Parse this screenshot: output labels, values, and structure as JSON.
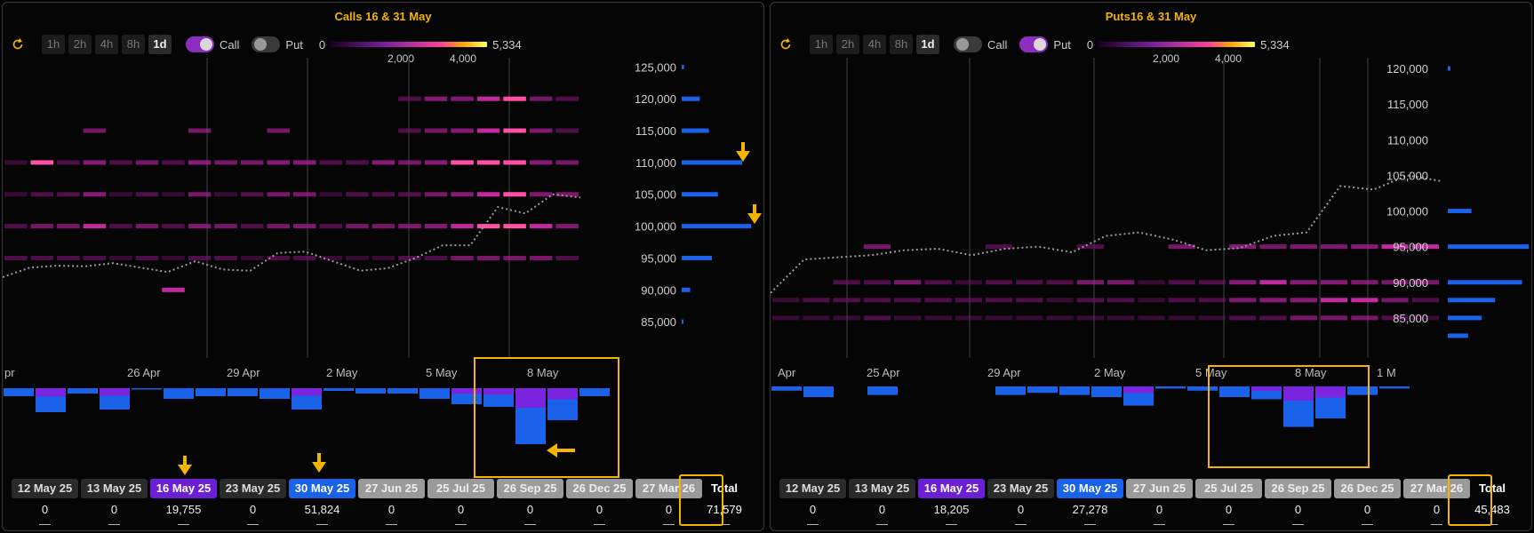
{
  "panels": [
    {
      "id": "calls",
      "title": "Calls 16 & 31 May",
      "timeframes": [
        "1h",
        "2h",
        "4h",
        "8h",
        "1d"
      ],
      "active_timeframe": "1d",
      "call_label": "Call",
      "put_label": "Put",
      "call_on": true,
      "put_on": false,
      "legend": {
        "min": "0",
        "max": "5,334",
        "ticks": [
          "2,000",
          "4,000"
        ]
      },
      "expiries": [
        {
          "label": "12 May 25",
          "value": "0",
          "style": "dark"
        },
        {
          "label": "13 May 25",
          "value": "0",
          "style": "dark"
        },
        {
          "label": "16 May 25",
          "value": "19,755",
          "style": "purple"
        },
        {
          "label": "23 May 25",
          "value": "0",
          "style": "dark"
        },
        {
          "label": "30 May 25",
          "value": "51,824",
          "style": "blue"
        },
        {
          "label": "27 Jun 25",
          "value": "0",
          "style": "grey"
        },
        {
          "label": "25 Jul 25",
          "value": "0",
          "style": "grey"
        },
        {
          "label": "26 Sep 25",
          "value": "0",
          "style": "grey"
        },
        {
          "label": "26 Dec 25",
          "value": "0",
          "style": "grey"
        },
        {
          "label": "27 Mar 26",
          "value": "0",
          "style": "grey"
        }
      ],
      "dash": "—",
      "total_label": "Total",
      "total_value": "71,579"
    },
    {
      "id": "puts",
      "title": "Puts16 & 31 May",
      "timeframes": [
        "1h",
        "2h",
        "4h",
        "8h",
        "1d"
      ],
      "active_timeframe": "1d",
      "call_label": "Call",
      "put_label": "Put",
      "call_on": false,
      "put_on": true,
      "legend": {
        "min": "0",
        "max": "5,334",
        "ticks": [
          "2,000",
          "4,000"
        ]
      },
      "expiries": [
        {
          "label": "12 May 25",
          "value": "0",
          "style": "dark"
        },
        {
          "label": "13 May 25",
          "value": "0",
          "style": "dark"
        },
        {
          "label": "16 May 25",
          "value": "18,205",
          "style": "purple"
        },
        {
          "label": "23 May 25",
          "value": "0",
          "style": "dark"
        },
        {
          "label": "30 May 25",
          "value": "27,278",
          "style": "blue"
        },
        {
          "label": "27 Jun 25",
          "value": "0",
          "style": "grey"
        },
        {
          "label": "25 Jul 25",
          "value": "0",
          "style": "grey"
        },
        {
          "label": "26 Sep 25",
          "value": "0",
          "style": "grey"
        },
        {
          "label": "26 Dec 25",
          "value": "0",
          "style": "grey"
        },
        {
          "label": "27 Mar 26",
          "value": "0",
          "style": "grey"
        }
      ],
      "dash": "—",
      "total_label": "Total",
      "total_value": "45,483"
    }
  ],
  "chart_data": [
    {
      "type": "heatmap",
      "title": "Calls 16 & 31 May",
      "x_ticks": [
        "pr",
        "26 Apr",
        "29 Apr",
        "2 May",
        "5 May",
        "8 May"
      ],
      "y_ticks": [
        125000,
        120000,
        115000,
        110000,
        105000,
        100000,
        95000,
        90000,
        85000
      ],
      "ylim": [
        80000,
        127000
      ],
      "colorbar": {
        "min": 0,
        "max": 5334
      },
      "price_line": [
        92000,
        93500,
        93800,
        93700,
        94200,
        93500,
        92800,
        94500,
        93200,
        93000,
        95800,
        96000,
        94500,
        93000,
        93400,
        95000,
        97000,
        97000,
        103000,
        102000,
        105000,
        104500
      ],
      "heat_rows": [
        {
          "strike": 120000,
          "cells": [
            0,
            0,
            0,
            0,
            0,
            0,
            0,
            0,
            0,
            0,
            0,
            0,
            0,
            0,
            0,
            0.2,
            0.5,
            0.4,
            0.6,
            0.9,
            0.3,
            0.2
          ]
        },
        {
          "strike": 115000,
          "cells": [
            0,
            0,
            0,
            0.3,
            0,
            0,
            0,
            0.3,
            0,
            0,
            0.3,
            0,
            0,
            0,
            0,
            0.2,
            0.3,
            0.5,
            0.7,
            0.9,
            0.4,
            0.2
          ]
        },
        {
          "strike": 110000,
          "cells": [
            0.1,
            0.8,
            0.2,
            0.5,
            0.2,
            0.3,
            0.2,
            0.5,
            0.3,
            0.3,
            0.5,
            0.5,
            0.2,
            0.2,
            0.5,
            0.3,
            0.5,
            0.8,
            0.9,
            0.9,
            0.5,
            0.3
          ]
        },
        {
          "strike": 105000,
          "cells": [
            0.1,
            0.2,
            0.2,
            0.5,
            0.1,
            0.2,
            0.1,
            0.3,
            0.1,
            0.2,
            0.3,
            0.3,
            0.1,
            0.2,
            0.2,
            0.2,
            0.3,
            0.5,
            0.6,
            0.95,
            0.4,
            0.3
          ]
        },
        {
          "strike": 100000,
          "cells": [
            0.2,
            0.3,
            0.3,
            0.6,
            0.2,
            0.3,
            0.2,
            0.4,
            0.3,
            0.2,
            0.3,
            0.4,
            0.2,
            0.3,
            0.3,
            0.4,
            0.5,
            0.6,
            0.8,
            0.9,
            0.6,
            0.4
          ]
        },
        {
          "strike": 95000,
          "cells": [
            0.2,
            0.2,
            0.2,
            0.2,
            0.1,
            0.2,
            0.1,
            0.2,
            0.2,
            0.1,
            0.2,
            0.2,
            0.1,
            0.1,
            0.1,
            0.2,
            0.2,
            0.3,
            0.3,
            0.3,
            0.3,
            0.2
          ]
        },
        {
          "strike": 90000,
          "cells": [
            0,
            0,
            0,
            0,
            0,
            0,
            0.6,
            0,
            0,
            0,
            0,
            0,
            0,
            0,
            0,
            0,
            0,
            0,
            0,
            0,
            0,
            0
          ]
        }
      ],
      "side_bars": [
        {
          "strike": 125000,
          "value": 0.04
        },
        {
          "strike": 120000,
          "value": 0.3
        },
        {
          "strike": 115000,
          "value": 0.45
        },
        {
          "strike": 110000,
          "value": 1.0
        },
        {
          "strike": 105000,
          "value": 0.6
        },
        {
          "strike": 100000,
          "value": 1.15
        },
        {
          "strike": 95000,
          "value": 0.5
        },
        {
          "strike": 90000,
          "value": 0.14
        },
        {
          "strike": 85000,
          "value": 0.02
        }
      ],
      "bottom_bars": [
        -0.3,
        -0.9,
        -0.2,
        -0.8,
        -0.05,
        -0.4,
        -0.3,
        -0.3,
        -0.4,
        -0.8,
        -0.1,
        -0.2,
        -0.2,
        -0.4,
        -0.6,
        -0.7,
        -2.1,
        -1.2,
        -0.3,
        0
      ]
    },
    {
      "type": "heatmap",
      "title": "Puts16 & 31 May",
      "x_ticks": [
        "Apr",
        "25 Apr",
        "29 Apr",
        "2 May",
        "5 May",
        "8 May",
        "1 M"
      ],
      "y_ticks": [
        120000,
        115000,
        110000,
        105000,
        100000,
        95000,
        90000,
        85000
      ],
      "ylim": [
        80000,
        122000
      ],
      "colorbar": {
        "min": 0,
        "max": 5334
      },
      "price_line": [
        88500,
        93200,
        93500,
        93800,
        94500,
        94700,
        93800,
        94700,
        95000,
        94200,
        96500,
        97000,
        96000,
        94500,
        94800,
        96500,
        97000,
        103500,
        103000,
        105000,
        104200
      ],
      "heat_rows": [
        {
          "strike": 95000,
          "cells": [
            0,
            0,
            0,
            0.3,
            0,
            0,
            0,
            0.2,
            0,
            0,
            0.2,
            0,
            0,
            0.3,
            0,
            0.5,
            0.3,
            0.4,
            0.4,
            0.5,
            0.6,
            0.6
          ]
        },
        {
          "strike": 90000,
          "cells": [
            0,
            0,
            0.2,
            0.2,
            0.3,
            0.2,
            0.1,
            0.2,
            0.2,
            0.2,
            0.3,
            0.3,
            0.1,
            0.2,
            0.2,
            0.5,
            0.6,
            0.5,
            0.5,
            0.4,
            0.3,
            0.3
          ]
        },
        {
          "strike": 87500,
          "cells": [
            0.1,
            0.2,
            0.2,
            0.2,
            0.2,
            0.2,
            0.2,
            0.2,
            0.2,
            0.1,
            0.2,
            0.2,
            0.1,
            0.2,
            0.2,
            0.4,
            0.5,
            0.5,
            0.6,
            0.7,
            0.3,
            0.2
          ]
        },
        {
          "strike": 85000,
          "cells": [
            0.1,
            0.1,
            0.1,
            0.2,
            0.1,
            0.1,
            0.1,
            0.1,
            0.1,
            0.1,
            0.1,
            0.1,
            0.1,
            0.1,
            0.1,
            0.2,
            0.2,
            0.3,
            0.3,
            0.3,
            0.2,
            0.1
          ]
        }
      ],
      "side_bars": [
        {
          "strike": 120000,
          "value": 0.04
        },
        {
          "strike": 100000,
          "value": 0.35
        },
        {
          "strike": 95000,
          "value": 1.2
        },
        {
          "strike": 90000,
          "value": 1.1
        },
        {
          "strike": 87500,
          "value": 0.7
        },
        {
          "strike": 85000,
          "value": 0.5
        },
        {
          "strike": 82500,
          "value": 0.3
        }
      ],
      "bottom_bars": [
        -0.2,
        -0.5,
        0,
        -0.4,
        0,
        0,
        0,
        -0.4,
        -0.3,
        -0.4,
        -0.5,
        -0.9,
        -0.1,
        -0.2,
        -0.5,
        -0.6,
        -1.9,
        -1.5,
        -0.4,
        -0.1
      ]
    }
  ]
}
